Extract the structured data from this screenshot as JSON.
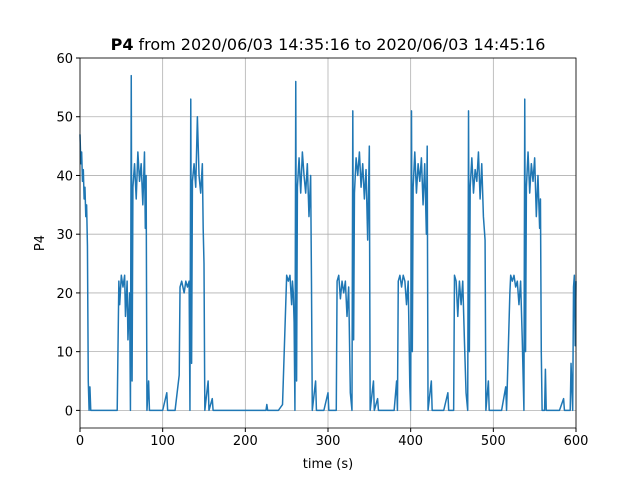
{
  "chart_data": {
    "type": "line",
    "title_bold": "P4",
    "title": "from 2020/06/03 14:35:16 to 2020/06/03 14:45:16",
    "x_label": "time (s)",
    "y_label": "P4",
    "xlim": [
      0,
      600
    ],
    "xticks": [
      0,
      100,
      200,
      300,
      400,
      500,
      600
    ],
    "ylim": [
      -3,
      60
    ],
    "yticks": [
      0,
      10,
      20,
      30,
      40,
      50,
      60
    ],
    "grid": true,
    "x": [
      0,
      1,
      2,
      3,
      4,
      5,
      6,
      7,
      8,
      9,
      10,
      11,
      12,
      13,
      14,
      20,
      30,
      40,
      45,
      47,
      48,
      50,
      52,
      54,
      55,
      57,
      58,
      60,
      61,
      62,
      63,
      64,
      66,
      68,
      70,
      72,
      74,
      76,
      78,
      79,
      80,
      81,
      83,
      84,
      90,
      100,
      105,
      106,
      115,
      120,
      121,
      123,
      126,
      128,
      130,
      132,
      133,
      134,
      135,
      136,
      138,
      140,
      142,
      144,
      146,
      148,
      149,
      150,
      151,
      155,
      156,
      160,
      161,
      200,
      225,
      226,
      227,
      240,
      245,
      250,
      252,
      254,
      256,
      257,
      258,
      259,
      260,
      261,
      262,
      263,
      265,
      267,
      269,
      271,
      273,
      275,
      277,
      279,
      280,
      281,
      285,
      286,
      295,
      300,
      301,
      310,
      311,
      313,
      315,
      317,
      319,
      321,
      323,
      325,
      327,
      329,
      330,
      331,
      332,
      334,
      336,
      338,
      340,
      342,
      344,
      346,
      348,
      350,
      351,
      355,
      356,
      360,
      361,
      380,
      383,
      384,
      385,
      387,
      389,
      391,
      393,
      395,
      397,
      399,
      400,
      401,
      402,
      403,
      405,
      407,
      409,
      411,
      413,
      415,
      417,
      419,
      420,
      421,
      425,
      426,
      440,
      445,
      446,
      452,
      453,
      455,
      457,
      459,
      461,
      463,
      465,
      467,
      469,
      470,
      471,
      472,
      474,
      476,
      478,
      480,
      482,
      484,
      486,
      488,
      490,
      491,
      494,
      495,
      510,
      515,
      516,
      520,
      521,
      523,
      525,
      527,
      529,
      531,
      533,
      535,
      537,
      538,
      539,
      540,
      542,
      544,
      546,
      548,
      550,
      552,
      554,
      556,
      557,
      558,
      559,
      562,
      563,
      564,
      580,
      585,
      586,
      593,
      594,
      596,
      597,
      598,
      599,
      600
    ],
    "series": [
      {
        "color": "#1f77b4",
        "values": [
          47,
          42,
          44,
          39,
          41,
          36,
          38,
          33,
          35,
          28,
          5,
          0,
          4,
          0,
          0,
          0,
          0,
          0,
          0,
          22,
          18,
          23,
          21,
          23,
          16,
          22,
          12,
          20,
          0,
          57,
          5,
          38,
          42,
          36,
          44,
          39,
          42,
          35,
          44,
          31,
          40,
          0,
          5,
          0,
          0,
          0,
          3,
          0,
          0,
          6,
          21,
          22,
          20,
          22,
          21,
          22,
          0,
          53,
          8,
          39,
          42,
          38,
          50,
          40,
          37,
          42,
          31,
          25,
          0,
          5,
          0,
          2,
          0,
          0,
          0,
          1,
          0,
          0,
          1,
          23,
          22,
          23,
          18,
          22,
          20,
          15,
          0,
          56,
          5,
          38,
          43,
          37,
          44,
          40,
          37,
          42,
          33,
          40,
          22,
          0,
          5,
          0,
          0,
          3,
          0,
          0,
          22,
          23,
          19,
          22,
          20,
          22,
          16,
          21,
          3,
          0,
          51,
          12,
          37,
          43,
          40,
          44,
          38,
          42,
          36,
          41,
          29,
          45,
          0,
          5,
          0,
          2,
          0,
          0,
          5,
          0,
          22,
          23,
          21,
          23,
          22,
          18,
          22,
          4,
          0,
          51,
          10,
          38,
          44,
          37,
          42,
          39,
          43,
          35,
          42,
          30,
          45,
          0,
          5,
          0,
          0,
          3,
          0,
          0,
          23,
          22,
          16,
          22,
          18,
          22,
          12,
          3,
          0,
          51,
          10,
          38,
          43,
          37,
          41,
          39,
          44,
          36,
          42,
          33,
          29,
          0,
          5,
          0,
          0,
          4,
          0,
          20,
          23,
          22,
          23,
          21,
          22,
          18,
          22,
          12,
          0,
          53,
          10,
          38,
          44,
          37,
          42,
          39,
          43,
          33,
          40,
          31,
          36,
          10,
          0,
          0,
          7,
          0,
          0,
          2,
          0,
          0,
          8,
          0,
          21,
          23,
          11,
          22
        ]
      }
    ]
  }
}
